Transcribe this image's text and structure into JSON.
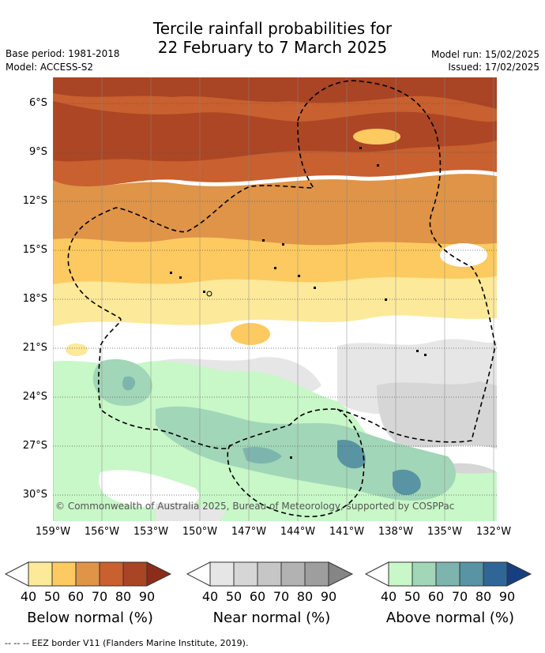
{
  "title_line1": "Tercile rainfall probabilities for",
  "title_line2": "22 February to 7 March 2025",
  "base_period": "Base period: 1981-2018",
  "model": "Model: ACCESS-S2",
  "model_run": "Model run: 15/02/2025",
  "issued": "Issued: 17/02/2025",
  "copyright": "© Commonwealth of Australia 2025, Bureau of Meteorology, supported by COSPPac",
  "lat_labels": [
    "6°S",
    "9°S",
    "12°S",
    "15°S",
    "18°S",
    "21°S",
    "24°S",
    "27°S",
    "30°S"
  ],
  "lon_labels": [
    "159°W",
    "156°W",
    "153°W",
    "150°W",
    "147°W",
    "144°W",
    "141°W",
    "138°W",
    "135°W",
    "132°W"
  ],
  "colorbars": [
    {
      "title": "Below normal (%)",
      "ticks": [
        "40",
        "50",
        "60",
        "70",
        "80",
        "90"
      ],
      "colors": [
        "#ffffff",
        "#fde99a",
        "#fcca60",
        "#df9448",
        "#c8602f",
        "#a94424",
        "#8b2d18"
      ]
    },
    {
      "title": "Near normal (%)",
      "ticks": [
        "40",
        "50",
        "60",
        "70",
        "80",
        "90"
      ],
      "colors": [
        "#ffffff",
        "#e6e6e6",
        "#d6d6d6",
        "#c6c6c6",
        "#b2b2b2",
        "#9e9e9e",
        "#858585"
      ]
    },
    {
      "title": "Above normal (%)",
      "ticks": [
        "40",
        "50",
        "60",
        "70",
        "80",
        "90"
      ],
      "colors": [
        "#ffffff",
        "#c8f7c8",
        "#a2d6b8",
        "#7db5ae",
        "#5894a3",
        "#2e6697",
        "#163f82"
      ]
    }
  ],
  "footer": "--  --  -- EEZ border V11 (Flanders Marine Institute, 2019).",
  "colors": {
    "below": "#df9448",
    "near": "#d6d6d6",
    "above": "#a2d6b8"
  }
}
